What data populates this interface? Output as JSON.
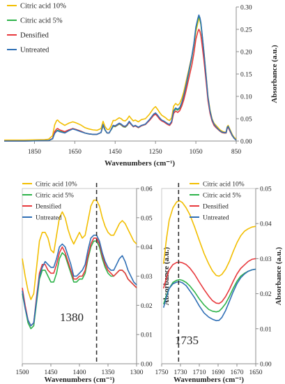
{
  "series_styles": [
    {
      "name": "Citric acid 10%",
      "color": "#F2BE00"
    },
    {
      "name": "Citric acid 5%",
      "color": "#2EB34A"
    },
    {
      "name": "Densified",
      "color": "#E8383C"
    },
    {
      "name": "Untreated",
      "color": "#2F6FB5"
    }
  ],
  "chart_data": [
    {
      "id": "full-spectrum",
      "type": "line",
      "xlabel": "Wavenumbers (cm⁻¹)",
      "ylabel": "Absorbance (a.u.)",
      "xlim": [
        2000,
        850
      ],
      "ylim": [
        0,
        0.3
      ],
      "x_ticks": [
        1850,
        1650,
        1450,
        1250,
        1050,
        850
      ],
      "y_ticks": [
        0.0,
        0.05,
        0.1,
        0.15,
        0.2,
        0.25,
        0.3
      ],
      "y_tick_labels": [
        "0.00",
        "0.05",
        "0.10",
        "0.15",
        "0.20",
        "0.25",
        "0.30"
      ],
      "legend": "top-left",
      "x": [
        2000,
        1900,
        1800,
        1780,
        1760,
        1750,
        1740,
        1735,
        1725,
        1700,
        1680,
        1660,
        1645,
        1620,
        1600,
        1580,
        1560,
        1540,
        1520,
        1510,
        1500,
        1490,
        1480,
        1470,
        1460,
        1450,
        1440,
        1430,
        1420,
        1410,
        1400,
        1390,
        1380,
        1370,
        1360,
        1350,
        1335,
        1320,
        1300,
        1280,
        1260,
        1250,
        1240,
        1230,
        1220,
        1210,
        1200,
        1190,
        1180,
        1170,
        1160,
        1150,
        1140,
        1130,
        1120,
        1110,
        1100,
        1090,
        1080,
        1070,
        1060,
        1050,
        1040,
        1035,
        1030,
        1025,
        1020,
        1010,
        1000,
        990,
        980,
        970,
        960,
        950,
        940,
        930,
        920,
        910,
        900,
        895,
        890,
        880,
        870,
        860,
        850
      ],
      "series": [
        {
          "name": "Citric acid 10%",
          "values": [
            0.002,
            0.002,
            0.003,
            0.004,
            0.012,
            0.036,
            0.046,
            0.047,
            0.042,
            0.035,
            0.04,
            0.043,
            0.041,
            0.036,
            0.03,
            0.027,
            0.025,
            0.024,
            0.028,
            0.044,
            0.032,
            0.026,
            0.026,
            0.034,
            0.046,
            0.046,
            0.049,
            0.052,
            0.05,
            0.046,
            0.045,
            0.049,
            0.056,
            0.05,
            0.045,
            0.047,
            0.043,
            0.048,
            0.05,
            0.06,
            0.073,
            0.077,
            0.071,
            0.064,
            0.058,
            0.055,
            0.052,
            0.048,
            0.046,
            0.052,
            0.078,
            0.084,
            0.08,
            0.084,
            0.095,
            0.11,
            0.13,
            0.15,
            0.17,
            0.19,
            0.215,
            0.245,
            0.265,
            0.275,
            0.27,
            0.26,
            0.24,
            0.2,
            0.15,
            0.1,
            0.07,
            0.05,
            0.04,
            0.035,
            0.03,
            0.025,
            0.022,
            0.02,
            0.02,
            0.032,
            0.035,
            0.025,
            0.015,
            0.008,
            0.004
          ]
        },
        {
          "name": "Citric acid 5%",
          "values": [
            0.0,
            0.0,
            0.001,
            0.001,
            0.005,
            0.018,
            0.023,
            0.024,
            0.022,
            0.019,
            0.024,
            0.028,
            0.026,
            0.022,
            0.018,
            0.016,
            0.015,
            0.015,
            0.019,
            0.035,
            0.024,
            0.018,
            0.018,
            0.025,
            0.033,
            0.032,
            0.035,
            0.038,
            0.036,
            0.032,
            0.031,
            0.035,
            0.042,
            0.037,
            0.032,
            0.034,
            0.03,
            0.034,
            0.037,
            0.047,
            0.059,
            0.062,
            0.057,
            0.051,
            0.046,
            0.044,
            0.041,
            0.038,
            0.036,
            0.043,
            0.066,
            0.072,
            0.069,
            0.073,
            0.084,
            0.1,
            0.12,
            0.142,
            0.164,
            0.187,
            0.215,
            0.252,
            0.272,
            0.28,
            0.273,
            0.262,
            0.24,
            0.195,
            0.145,
            0.095,
            0.065,
            0.046,
            0.036,
            0.031,
            0.026,
            0.022,
            0.019,
            0.018,
            0.018,
            0.029,
            0.032,
            0.022,
            0.012,
            0.006,
            0.002
          ]
        },
        {
          "name": "Densified",
          "values": [
            0.0,
            0.0,
            0.001,
            0.001,
            0.006,
            0.021,
            0.027,
            0.028,
            0.025,
            0.021,
            0.025,
            0.028,
            0.026,
            0.022,
            0.018,
            0.016,
            0.015,
            0.015,
            0.019,
            0.036,
            0.025,
            0.018,
            0.018,
            0.026,
            0.035,
            0.033,
            0.036,
            0.039,
            0.037,
            0.033,
            0.032,
            0.036,
            0.042,
            0.037,
            0.032,
            0.034,
            0.03,
            0.034,
            0.037,
            0.046,
            0.057,
            0.06,
            0.055,
            0.049,
            0.045,
            0.043,
            0.04,
            0.037,
            0.035,
            0.041,
            0.062,
            0.067,
            0.064,
            0.068,
            0.078,
            0.092,
            0.11,
            0.13,
            0.15,
            0.17,
            0.196,
            0.228,
            0.245,
            0.25,
            0.245,
            0.236,
            0.218,
            0.18,
            0.136,
            0.09,
            0.062,
            0.045,
            0.035,
            0.03,
            0.026,
            0.022,
            0.019,
            0.018,
            0.018,
            0.028,
            0.031,
            0.021,
            0.012,
            0.006,
            0.002
          ]
        },
        {
          "name": "Untreated",
          "values": [
            0.0,
            0.0,
            0.001,
            0.001,
            0.005,
            0.017,
            0.022,
            0.023,
            0.021,
            0.018,
            0.023,
            0.027,
            0.025,
            0.021,
            0.018,
            0.016,
            0.015,
            0.015,
            0.019,
            0.037,
            0.025,
            0.018,
            0.018,
            0.026,
            0.035,
            0.034,
            0.037,
            0.04,
            0.038,
            0.034,
            0.033,
            0.037,
            0.044,
            0.038,
            0.033,
            0.035,
            0.031,
            0.035,
            0.038,
            0.048,
            0.06,
            0.063,
            0.058,
            0.052,
            0.047,
            0.045,
            0.042,
            0.039,
            0.037,
            0.044,
            0.068,
            0.074,
            0.071,
            0.075,
            0.086,
            0.102,
            0.122,
            0.145,
            0.167,
            0.19,
            0.218,
            0.255,
            0.275,
            0.282,
            0.276,
            0.265,
            0.243,
            0.198,
            0.148,
            0.098,
            0.067,
            0.048,
            0.038,
            0.032,
            0.027,
            0.023,
            0.02,
            0.019,
            0.019,
            0.03,
            0.033,
            0.023,
            0.013,
            0.006,
            0.002
          ]
        }
      ]
    },
    {
      "id": "zoom-1380",
      "type": "line",
      "xlabel": "Wavenumbers (cm⁻¹)",
      "ylabel": "Absorbance (a.u.)",
      "xlim": [
        1500,
        1300
      ],
      "ylim": [
        0,
        0.06
      ],
      "x_ticks": [
        1500,
        1450,
        1400,
        1350,
        1300
      ],
      "y_ticks": [
        0,
        0.01,
        0.02,
        0.03,
        0.04,
        0.05,
        0.06
      ],
      "y_tick_labels": [
        "0.00",
        "0.01",
        "0.02",
        "0.03",
        "0.04",
        "0.05",
        "0.06"
      ],
      "legend": "top-left",
      "marker_x": 1370,
      "annotation": "1380",
      "x": [
        1500,
        1495,
        1490,
        1485,
        1480,
        1475,
        1470,
        1465,
        1460,
        1455,
        1450,
        1445,
        1440,
        1435,
        1430,
        1425,
        1420,
        1415,
        1410,
        1405,
        1400,
        1395,
        1390,
        1385,
        1380,
        1375,
        1370,
        1365,
        1360,
        1355,
        1350,
        1345,
        1340,
        1335,
        1330,
        1325,
        1320,
        1315,
        1310,
        1305,
        1300
      ],
      "series": [
        {
          "name": "Citric acid 10%",
          "values": [
            0.036,
            0.03,
            0.025,
            0.022,
            0.024,
            0.033,
            0.042,
            0.045,
            0.045,
            0.043,
            0.039,
            0.038,
            0.044,
            0.05,
            0.052,
            0.05,
            0.046,
            0.043,
            0.041,
            0.043,
            0.045,
            0.043,
            0.044,
            0.049,
            0.054,
            0.056,
            0.056,
            0.054,
            0.05,
            0.047,
            0.045,
            0.044,
            0.044,
            0.046,
            0.048,
            0.049,
            0.048,
            0.046,
            0.044,
            0.042,
            0.041
          ]
        },
        {
          "name": "Citric acid 5%",
          "values": [
            0.024,
            0.019,
            0.014,
            0.012,
            0.013,
            0.021,
            0.029,
            0.032,
            0.032,
            0.03,
            0.028,
            0.028,
            0.031,
            0.036,
            0.038,
            0.037,
            0.034,
            0.031,
            0.028,
            0.028,
            0.029,
            0.029,
            0.031,
            0.036,
            0.04,
            0.042,
            0.042,
            0.04,
            0.036,
            0.033,
            0.031,
            0.03,
            0.03,
            0.031,
            0.032,
            0.032,
            0.031,
            0.029,
            0.028,
            0.027,
            0.026
          ]
        },
        {
          "name": "Densified",
          "values": [
            0.026,
            0.02,
            0.015,
            0.013,
            0.014,
            0.023,
            0.031,
            0.034,
            0.034,
            0.032,
            0.031,
            0.031,
            0.034,
            0.038,
            0.04,
            0.038,
            0.035,
            0.032,
            0.029,
            0.029,
            0.03,
            0.03,
            0.032,
            0.037,
            0.041,
            0.043,
            0.043,
            0.041,
            0.037,
            0.034,
            0.032,
            0.031,
            0.03,
            0.031,
            0.032,
            0.032,
            0.031,
            0.029,
            0.028,
            0.027,
            0.026
          ]
        },
        {
          "name": "Untreated",
          "values": [
            0.025,
            0.019,
            0.015,
            0.013,
            0.014,
            0.022,
            0.03,
            0.033,
            0.035,
            0.034,
            0.033,
            0.033,
            0.036,
            0.04,
            0.041,
            0.04,
            0.037,
            0.034,
            0.03,
            0.03,
            0.031,
            0.032,
            0.034,
            0.039,
            0.043,
            0.044,
            0.044,
            0.042,
            0.038,
            0.035,
            0.033,
            0.032,
            0.032,
            0.034,
            0.036,
            0.037,
            0.035,
            0.032,
            0.03,
            0.028,
            0.027
          ]
        }
      ]
    },
    {
      "id": "zoom-1735",
      "type": "line",
      "xlabel": "Wavenumbers (cm⁻¹)",
      "ylabel": "Absorbance (a.u.)",
      "xlim": [
        1750,
        1650
      ],
      "ylim": [
        0,
        0.05
      ],
      "x_ticks": [
        1750,
        1730,
        1710,
        1690,
        1670,
        1650
      ],
      "y_ticks": [
        0,
        0.01,
        0.02,
        0.03,
        0.04,
        0.05
      ],
      "y_tick_labels": [
        "0.00",
        "0.01",
        "0.02",
        "0.03",
        "0.04",
        "0.05"
      ],
      "legend": "top-right",
      "marker_x": 1732,
      "annotation": "1735",
      "x": [
        1748,
        1745,
        1742,
        1738,
        1734,
        1731,
        1728,
        1724,
        1720,
        1715,
        1710,
        1705,
        1700,
        1696,
        1692,
        1689,
        1686,
        1682,
        1678,
        1674,
        1670,
        1666,
        1662,
        1658,
        1654,
        1650
      ],
      "series": [
        {
          "name": "Citric acid 10%",
          "values": [
            0.0285,
            0.0355,
            0.041,
            0.0445,
            0.0462,
            0.0465,
            0.046,
            0.0445,
            0.0425,
            0.039,
            0.0352,
            0.0315,
            0.0285,
            0.0265,
            0.0252,
            0.025,
            0.0255,
            0.027,
            0.0292,
            0.032,
            0.0345,
            0.0365,
            0.0378,
            0.0385,
            0.039,
            0.0392
          ]
        },
        {
          "name": "Citric acid 5%",
          "values": [
            0.017,
            0.0195,
            0.0215,
            0.0232,
            0.0238,
            0.024,
            0.0238,
            0.0232,
            0.0222,
            0.0205,
            0.0185,
            0.0168,
            0.0155,
            0.015,
            0.0148,
            0.015,
            0.0158,
            0.0172,
            0.0192,
            0.0215,
            0.0235,
            0.025,
            0.0258,
            0.0264,
            0.0268,
            0.027
          ]
        },
        {
          "name": "Densified",
          "values": [
            0.0215,
            0.0245,
            0.0268,
            0.0283,
            0.0289,
            0.029,
            0.0288,
            0.0283,
            0.0273,
            0.0255,
            0.0233,
            0.0212,
            0.0193,
            0.018,
            0.0173,
            0.0172,
            0.0177,
            0.0192,
            0.0212,
            0.0235,
            0.0256,
            0.0272,
            0.0282,
            0.0292,
            0.0298,
            0.03
          ]
        },
        {
          "name": "Untreated",
          "values": [
            0.016,
            0.019,
            0.0215,
            0.0228,
            0.0233,
            0.0234,
            0.0231,
            0.0223,
            0.0208,
            0.0188,
            0.0165,
            0.0145,
            0.0133,
            0.0127,
            0.0123,
            0.0124,
            0.0132,
            0.0152,
            0.0178,
            0.0205,
            0.0228,
            0.0245,
            0.0256,
            0.0264,
            0.0268,
            0.027
          ]
        }
      ]
    }
  ]
}
